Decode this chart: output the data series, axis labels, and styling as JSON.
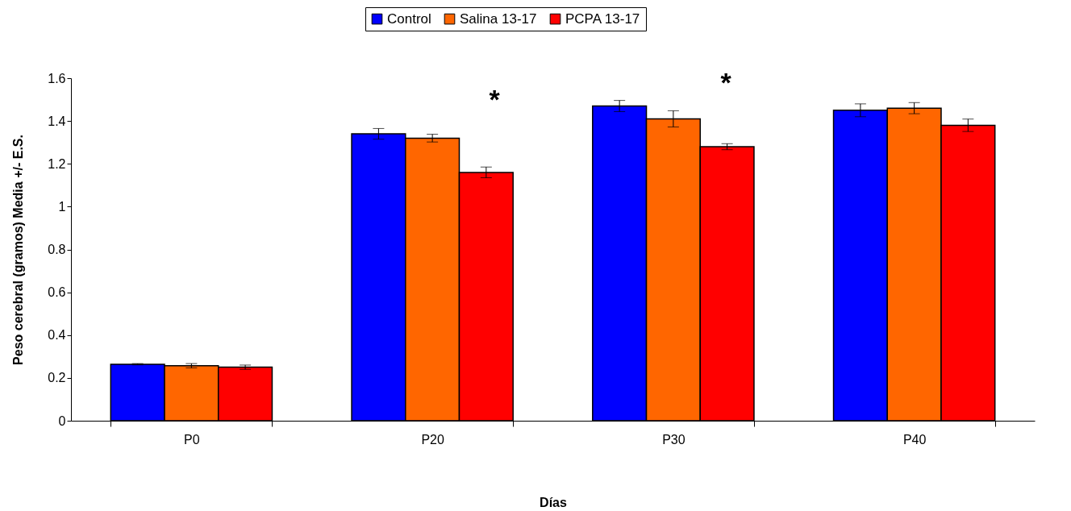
{
  "chart_data": {
    "type": "bar",
    "xlabel": "Días",
    "ylabel": "Peso cerebral (gramos) Media +/- E.S.",
    "categories": [
      "P0",
      "P20",
      "P30",
      "P40"
    ],
    "series": [
      {
        "name": "Control",
        "color": "#0000ff",
        "values": [
          0.264,
          1.34,
          1.47,
          1.45
        ],
        "errors": [
          0.003,
          0.025,
          0.026,
          0.03
        ]
      },
      {
        "name": "Salina 13-17",
        "color": "#ff6600",
        "values": [
          0.257,
          1.32,
          1.41,
          1.46
        ],
        "errors": [
          0.01,
          0.018,
          0.038,
          0.026
        ]
      },
      {
        "name": "PCPA 13-17",
        "color": "#ff0000",
        "values": [
          0.25,
          1.16,
          1.28,
          1.38
        ],
        "errors": [
          0.01,
          0.025,
          0.014,
          0.029
        ]
      }
    ],
    "ylim": [
      0,
      1.6
    ],
    "yticks": [
      0,
      0.2,
      0.4,
      0.6,
      0.8,
      1,
      1.2,
      1.4,
      1.6
    ],
    "legend": "top",
    "grid": false,
    "annotations": [
      "*",
      "*"
    ]
  }
}
